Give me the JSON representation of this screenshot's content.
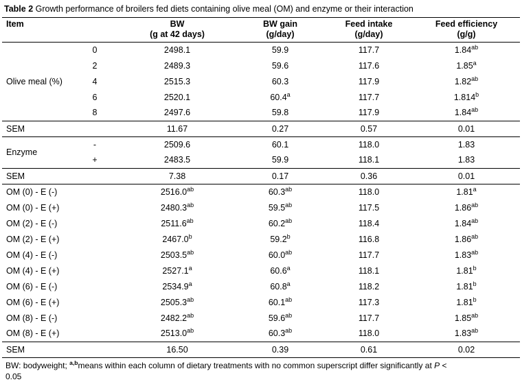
{
  "title": {
    "label": "Table 2",
    "text": " Growth performance of broilers fed diets containing olive meal (OM) and enzyme or their interaction"
  },
  "columns": [
    {
      "line1": "Item",
      "line2": ""
    },
    {
      "line1": "BW",
      "line2": "(g at 42 days)"
    },
    {
      "line1": "BW gain",
      "line2": "(g/day)"
    },
    {
      "line1": "Feed intake",
      "line2": "(g/day)"
    },
    {
      "line1": "Feed efficiency",
      "line2": "(g/g)"
    }
  ],
  "sections": [
    {
      "type": "group",
      "label": "Olive meal (%)",
      "rows": [
        {
          "level": "0",
          "cells": [
            [
              "2498.1",
              ""
            ],
            [
              "59.9",
              ""
            ],
            [
              "117.7",
              ""
            ],
            [
              "1.84",
              "ab"
            ]
          ]
        },
        {
          "level": "2",
          "cells": [
            [
              "2489.3",
              ""
            ],
            [
              "59.6",
              ""
            ],
            [
              "117.6",
              ""
            ],
            [
              "1.85",
              "a"
            ]
          ]
        },
        {
          "level": "4",
          "cells": [
            [
              "2515.3",
              ""
            ],
            [
              "60.3",
              ""
            ],
            [
              "117.9",
              ""
            ],
            [
              "1.82",
              "ab"
            ]
          ]
        },
        {
          "level": "6",
          "cells": [
            [
              "2520.1",
              ""
            ],
            [
              "60.4",
              "a"
            ],
            [
              "117.7",
              ""
            ],
            [
              "1.814",
              "b"
            ]
          ]
        },
        {
          "level": "8",
          "cells": [
            [
              "2497.6",
              ""
            ],
            [
              "59.8",
              ""
            ],
            [
              "117.9",
              ""
            ],
            [
              "1.84",
              "ab"
            ]
          ]
        }
      ]
    },
    {
      "type": "sem",
      "label": "SEM",
      "cells": [
        [
          "11.67",
          ""
        ],
        [
          "0.27",
          ""
        ],
        [
          "0.57",
          ""
        ],
        [
          "0.01",
          ""
        ]
      ]
    },
    {
      "type": "group",
      "label": "Enzyme",
      "rows": [
        {
          "level": "-",
          "cells": [
            [
              "2509.6",
              ""
            ],
            [
              "60.1",
              ""
            ],
            [
              "118.0",
              ""
            ],
            [
              "1.83",
              ""
            ]
          ]
        },
        {
          "level": "+",
          "cells": [
            [
              "2483.5",
              ""
            ],
            [
              "59.9",
              ""
            ],
            [
              "118.1",
              ""
            ],
            [
              "1.83",
              ""
            ]
          ]
        }
      ]
    },
    {
      "type": "sem",
      "label": "SEM",
      "cells": [
        [
          "7.38",
          ""
        ],
        [
          "0.17",
          ""
        ],
        [
          "0.36",
          ""
        ],
        [
          "0.01",
          ""
        ]
      ]
    },
    {
      "type": "plain",
      "rows": [
        {
          "label": "OM (0) - E (-)",
          "cells": [
            [
              "2516.0",
              "ab"
            ],
            [
              "60.3",
              "ab"
            ],
            [
              "118.0",
              ""
            ],
            [
              "1.81",
              "a"
            ]
          ]
        },
        {
          "label": "OM (0) - E (+)",
          "cells": [
            [
              "2480.3",
              "ab"
            ],
            [
              "59.5",
              "ab"
            ],
            [
              "117.5",
              ""
            ],
            [
              "1.86",
              "ab"
            ]
          ]
        },
        {
          "label": "OM (2) - E (-)",
          "cells": [
            [
              "2511.6",
              "ab"
            ],
            [
              "60.2",
              "ab"
            ],
            [
              "118.4",
              ""
            ],
            [
              "1.84",
              "ab"
            ]
          ]
        },
        {
          "label": "OM (2) - E (+)",
          "cells": [
            [
              "2467.0",
              "b"
            ],
            [
              "59.2",
              "b"
            ],
            [
              "116.8",
              ""
            ],
            [
              "1.86",
              "ab"
            ]
          ]
        },
        {
          "label": "OM (4) - E (-)",
          "cells": [
            [
              "2503.5",
              "ab"
            ],
            [
              "60.0",
              "ab"
            ],
            [
              "117.7",
              ""
            ],
            [
              "1.83",
              "ab"
            ]
          ]
        },
        {
          "label": "OM (4) - E (+)",
          "cells": [
            [
              "2527.1",
              "a"
            ],
            [
              "60.6",
              "a"
            ],
            [
              "118.1",
              ""
            ],
            [
              "1.81",
              "b"
            ]
          ]
        },
        {
          "label": "OM (6) - E (-)",
          "cells": [
            [
              "2534.9",
              "a"
            ],
            [
              "60.8",
              "a"
            ],
            [
              "118.2",
              ""
            ],
            [
              "1.81",
              "b"
            ]
          ]
        },
        {
          "label": "OM (6) - E (+)",
          "cells": [
            [
              "2505.3",
              "ab"
            ],
            [
              "60.1",
              "ab"
            ],
            [
              "117.3",
              ""
            ],
            [
              "1.81",
              "b"
            ]
          ]
        },
        {
          "label": "OM (8) - E (-)",
          "cells": [
            [
              "2482.2",
              "ab"
            ],
            [
              "59.6",
              "ab"
            ],
            [
              "117.7",
              ""
            ],
            [
              "1.85",
              "ab"
            ]
          ]
        },
        {
          "label": "OM (8) - E (+)",
          "cells": [
            [
              "2513.0",
              "ab"
            ],
            [
              "60.3",
              "ab"
            ],
            [
              "118.0",
              ""
            ],
            [
              "1.83",
              "ab"
            ]
          ]
        }
      ]
    },
    {
      "type": "sem",
      "label": "SEM",
      "cells": [
        [
          "16.50",
          ""
        ],
        [
          "0.39",
          ""
        ],
        [
          "0.61",
          ""
        ],
        [
          "0.02",
          ""
        ]
      ]
    }
  ],
  "footnote": {
    "text_before_sup": "BW: bodyweight; ",
    "sup": "a,b",
    "text_after_sup": "means within each column of dietary treatments with no common superscript differ significantly at ",
    "p_italic": "P",
    "tail": " <",
    "line2": "0.05"
  }
}
